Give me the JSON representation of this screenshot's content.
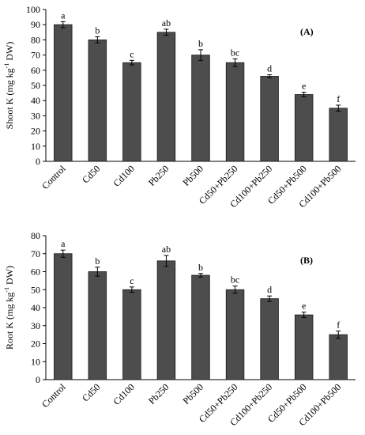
{
  "chart_data": [
    {
      "type": "bar",
      "panel": "(A)",
      "ylabel_main": "Shoot K (mg kg",
      "ylabel_sup": "-1",
      "ylabel_tail": " DW)",
      "ylim": [
        0,
        100
      ],
      "yticks": [
        0,
        10,
        20,
        30,
        40,
        50,
        60,
        70,
        80,
        90,
        100
      ],
      "categories": [
        "Control",
        "Cd50",
        "Cd100",
        "Pb250",
        "Pb500",
        "Cd50+Pb250",
        "Cd100+Pb250",
        "Cd50+Pb500",
        "Cd100+Pb500"
      ],
      "values": [
        90,
        80,
        65,
        85,
        70,
        65,
        56,
        44,
        35
      ],
      "errors": [
        2,
        2,
        1.5,
        2,
        3.5,
        2.5,
        1,
        1.5,
        2
      ],
      "letters": [
        "a",
        "b",
        "c",
        "ab",
        "b",
        "bc",
        "d",
        "e",
        "f"
      ],
      "bar_color": "#4d4d4d",
      "grid": false
    },
    {
      "type": "bar",
      "panel": "(B)",
      "ylabel_main": "Root K (mg kg",
      "ylabel_sup": "-1",
      "ylabel_tail": " DW)",
      "ylim": [
        0,
        80
      ],
      "yticks": [
        0,
        10,
        20,
        30,
        40,
        50,
        60,
        70,
        80
      ],
      "categories": [
        "Control",
        "Cd50",
        "Cd100",
        "Pb250",
        "Pb500",
        "Cd50+Pb250",
        "Cd100+Pb250",
        "Cd50+Pb500",
        "Cd100+Pb500"
      ],
      "values": [
        70,
        60,
        50,
        66,
        58,
        50,
        45,
        36,
        25
      ],
      "errors": [
        2,
        2.5,
        1.5,
        3,
        1,
        2,
        1.5,
        1.5,
        2
      ],
      "letters": [
        "a",
        "b",
        "c",
        "ab",
        "b",
        "bc",
        "d",
        "e",
        "f"
      ],
      "bar_color": "#4d4d4d",
      "grid": false
    }
  ]
}
